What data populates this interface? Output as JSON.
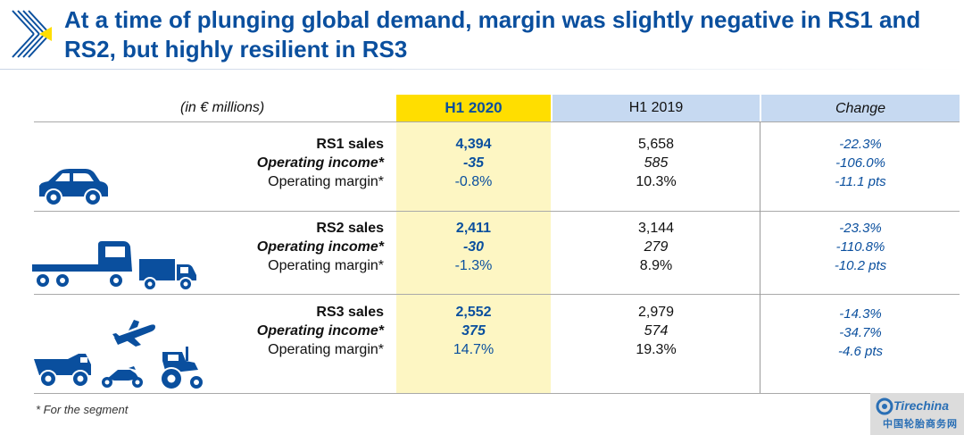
{
  "title": "At a time of plunging global demand, margin was slightly negative in RS1 and RS2, but highly resilient in RS3",
  "table": {
    "unit_label": "(in € millions)",
    "columns": [
      "H1 2020",
      "H1 2019",
      "Change"
    ],
    "segments": [
      {
        "icon": "car-icon",
        "rows": [
          {
            "label": "RS1 sales",
            "h1_2020": "4,394",
            "h1_2019": "5,658",
            "change": "-22.3%"
          },
          {
            "label": "Operating income*",
            "h1_2020": "-35",
            "h1_2019": "585",
            "change": "-106.0%"
          },
          {
            "label": "Operating margin*",
            "h1_2020": "-0.8%",
            "h1_2019": "10.3%",
            "change": "-11.1 pts"
          }
        ]
      },
      {
        "icon": "trucks-icon",
        "rows": [
          {
            "label": "RS2 sales",
            "h1_2020": "2,411",
            "h1_2019": "3,144",
            "change": "-23.3%"
          },
          {
            "label": "Operating income*",
            "h1_2020": "-30",
            "h1_2019": "279",
            "change": "-110.8%"
          },
          {
            "label": "Operating margin*",
            "h1_2020": "-1.3%",
            "h1_2019": "8.9%",
            "change": "-10.2 pts"
          }
        ]
      },
      {
        "icon": "specialty-vehicles-icon",
        "rows": [
          {
            "label": "RS3 sales",
            "h1_2020": "2,552",
            "h1_2019": "2,979",
            "change": "-14.3%"
          },
          {
            "label": "Operating income*",
            "h1_2020": "375",
            "h1_2019": "574",
            "change": "-34.7%"
          },
          {
            "label": "Operating margin*",
            "h1_2020": "14.7%",
            "h1_2019": "19.3%",
            "change": "-4.6 pts"
          }
        ]
      }
    ]
  },
  "footnote": "* For the segment",
  "watermark": {
    "brand": "Tirechina",
    "chinese": "中国轮胎商务网"
  },
  "colors": {
    "accent_blue": "#0a4f9e",
    "highlight_yellow": "#ffde00",
    "highlight_column": "#fdf6c3",
    "header_blue": "#c6d9f1"
  }
}
